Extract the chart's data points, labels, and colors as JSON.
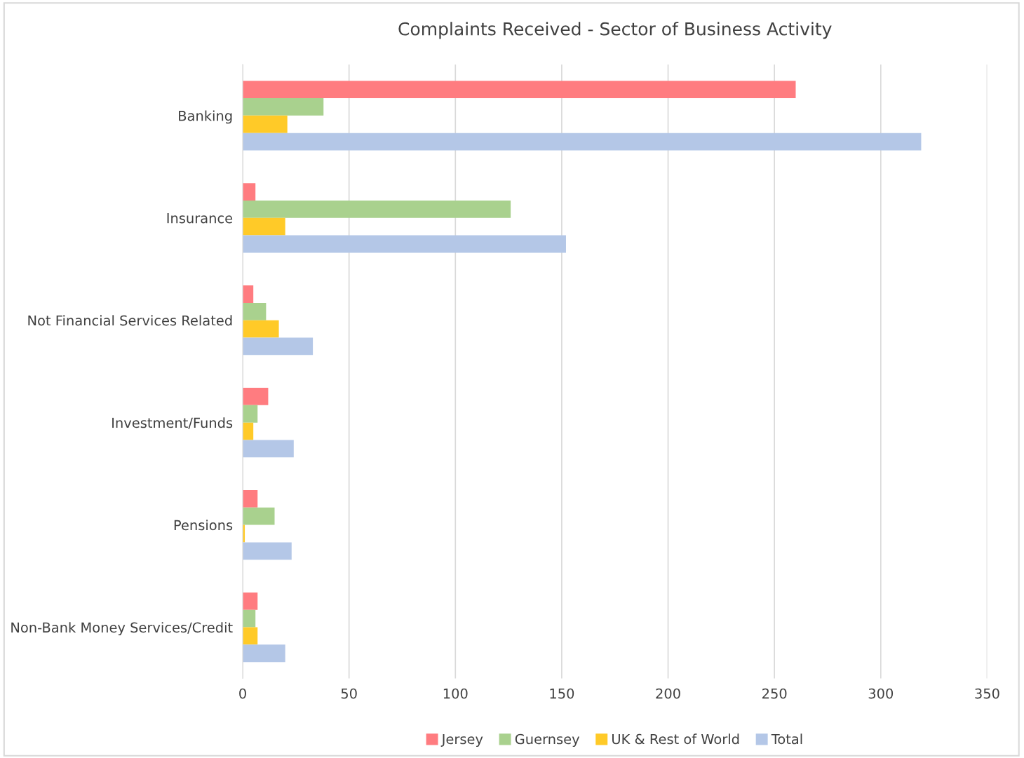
{
  "chart_data": {
    "type": "bar",
    "orientation": "horizontal",
    "title": "Complaints Received - Sector of Business Activity",
    "categories": [
      "Banking",
      "Insurance",
      "Not Financial Services Related",
      "Investment/Funds",
      "Pensions",
      "Non-Bank Money Services/Credit"
    ],
    "series": [
      {
        "name": "Jersey",
        "color": "#ff7c80",
        "values": [
          260,
          6,
          5,
          12,
          7,
          7
        ]
      },
      {
        "name": "Guernsey",
        "color": "#a9d18e",
        "values": [
          38,
          126,
          11,
          7,
          15,
          6
        ]
      },
      {
        "name": "UK & Rest of World",
        "color": "#ffca28",
        "values": [
          21,
          20,
          17,
          5,
          1,
          7
        ]
      },
      {
        "name": "Total",
        "color": "#b4c7e7",
        "values": [
          319,
          152,
          33,
          24,
          23,
          20
        ]
      }
    ],
    "xlim": [
      0,
      350
    ],
    "xticks": [
      0,
      50,
      100,
      150,
      200,
      250,
      300,
      350
    ],
    "grid": "x",
    "legend": "bottom"
  }
}
